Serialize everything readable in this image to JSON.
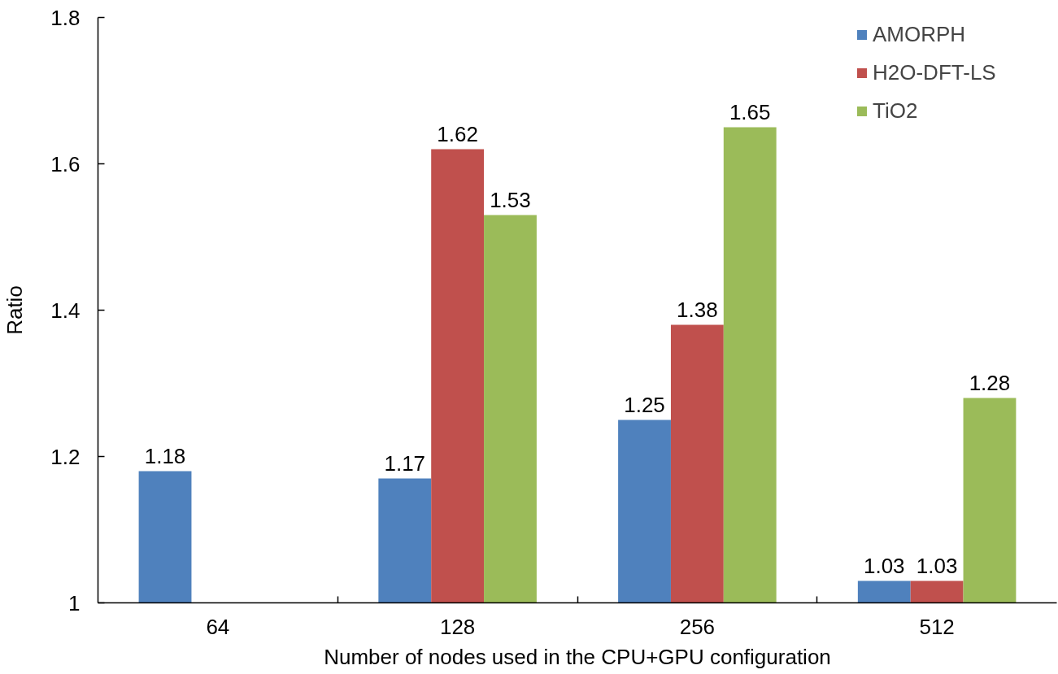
{
  "chart_data": {
    "type": "bar",
    "xlabel": "Number of nodes used in the CPU+GPU configuration",
    "ylabel": "Ratio",
    "categories": [
      "64",
      "128",
      "256",
      "512"
    ],
    "series": [
      {
        "name": "AMORPH",
        "color": "#4f81bd",
        "values": [
          1.18,
          1.17,
          1.25,
          1.03
        ]
      },
      {
        "name": "H2O-DFT-LS",
        "color": "#c0504d",
        "values": [
          null,
          1.62,
          1.38,
          1.03
        ]
      },
      {
        "name": "TiO2",
        "color": "#9bbb59",
        "values": [
          null,
          1.53,
          1.65,
          1.28
        ]
      }
    ],
    "ylim": [
      1,
      1.8
    ],
    "yticks": [
      1,
      1.2,
      1.4,
      1.6,
      1.8
    ],
    "grid": false,
    "legend": "top right",
    "data_labels": true
  }
}
